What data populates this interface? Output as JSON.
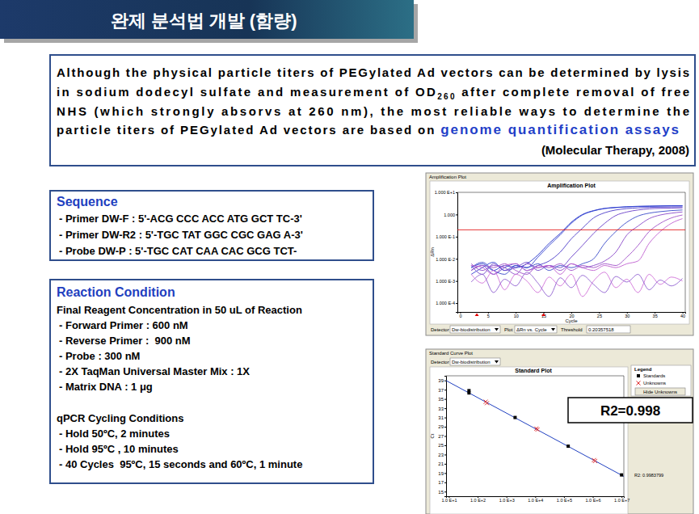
{
  "header": {
    "title": "완제 분석법 개발 (함량)"
  },
  "quote": {
    "lines": [
      [
        "Although the physical particle titers of PEGylated Ad vectors can be determined by lysis"
      ],
      [
        "in sodium dodecyl sulfate and measurement of OD",
        {
          "sub": "260"
        },
        " after complete removal of free"
      ],
      [
        "NHS (which strongly absorvs at 260 nm), the most reliable ways to determine the"
      ],
      [
        "particle titers of PEGylated Ad vectors are based on ",
        {
          "highlight": "genome quantification assays"
        }
      ]
    ],
    "citation": "(Molecular Therapy, 2008)"
  },
  "sequence": {
    "title": "Sequence",
    "lines": [
      "- Primer DW-F : 5'-ACG CCC ACC ATG GCT TC-3'",
      "- Primer DW-R2 : 5'-TGC TAT GGC CGC GAG A-3'",
      "- Probe DW-P : 5'-TGC CAT CAA CAC GCG TCT-"
    ]
  },
  "reaction": {
    "title": "Reaction Condition",
    "subtitle": "Final Reagent Concentration in 50 uL of Reaction",
    "items": [
      "- Forward Primer : 600 nM",
      "- Reverse Primer :  900 nM",
      "- Probe : 300 nM",
      "- 2X TaqMan Universal Master Mix : 1X",
      "- Matrix DNA : 1 μg"
    ],
    "cycling_title": "qPCR Cycling Conditions",
    "cycling": [
      "- Hold 50ºC, 2 minutes",
      "- Hold 95ºC , 10 minutes",
      "- 40 Cycles  95ºC, 15 seconds and 60ºC, 1 minute"
    ]
  },
  "chart_data": [
    {
      "type": "line",
      "window_title": "Amplification Plot",
      "title": "Amplification Plot",
      "xlabel": "Cycle",
      "ylabel": "ΔRn",
      "log": "y",
      "xlim": [
        -0.5,
        40.5
      ],
      "xticks": [
        0,
        5,
        10,
        15,
        20,
        25,
        30,
        35,
        40
      ],
      "ylim": [
        4e-05,
        10
      ],
      "yticks": [
        {
          "value": 10,
          "label": "1.000 E+1"
        },
        {
          "value": 1,
          "label": "1.000"
        },
        {
          "value": 0.1,
          "label": "1.000 E-1"
        },
        {
          "value": 0.01,
          "label": "1.000 E-2"
        },
        {
          "value": 0.001,
          "label": "1.000 E-3"
        },
        {
          "value": 0.0001,
          "label": "1.000 E-4"
        }
      ],
      "threshold": 0.20357518,
      "baseline_cycles": [
        3,
        15
      ],
      "detector_label": "Detector",
      "detector": "Dw-biodistribution",
      "plot_label": "Plot",
      "plot": "ΔRn vs. Cycle",
      "threshold_label": "Threshold",
      "x": [
        2,
        4,
        6,
        8,
        10,
        12,
        14,
        16,
        18,
        20,
        22,
        24,
        26,
        28,
        30,
        32,
        34,
        36,
        38,
        40
      ],
      "series": [
        {
          "color": "#1f2fc8",
          "values": [
            0.004,
            0.006,
            0.003,
            0.005,
            0.004,
            0.006,
            0.015,
            0.05,
            0.14,
            0.45,
            1.0,
            1.5,
            1.9,
            2.1,
            2.25,
            2.35,
            2.4,
            2.45,
            2.5,
            2.5
          ]
        },
        {
          "color": "#3040d0",
          "values": [
            0.002,
            0.004,
            0.007,
            0.003,
            0.005,
            0.004,
            0.012,
            0.04,
            0.12,
            0.4,
            0.95,
            1.45,
            1.85,
            2.05,
            2.2,
            2.3,
            2.35,
            2.4,
            2.45,
            2.45
          ]
        },
        {
          "color": "#4a3ac8",
          "values": [
            0.003,
            0.005,
            0.002,
            0.004,
            0.006,
            0.003,
            0.005,
            0.008,
            0.02,
            0.08,
            0.24,
            0.7,
            1.2,
            1.6,
            1.85,
            2.0,
            2.1,
            2.15,
            2.2,
            2.2
          ]
        },
        {
          "color": "#6a40c8",
          "values": [
            0.005,
            0.002,
            0.006,
            0.003,
            0.004,
            0.007,
            0.003,
            0.005,
            0.004,
            0.012,
            0.04,
            0.14,
            0.4,
            0.9,
            1.3,
            1.6,
            1.8,
            1.9,
            1.95,
            2.0
          ]
        },
        {
          "color": "#3848c8",
          "values": [
            0.004,
            0.007,
            0.003,
            0.002,
            0.005,
            0.004,
            0.006,
            0.003,
            0.005,
            0.004,
            0.006,
            0.01,
            0.05,
            0.17,
            0.45,
            0.85,
            1.15,
            1.35,
            1.5,
            1.6
          ]
        },
        {
          "color": "#8a48c8",
          "values": [
            0.006,
            0.003,
            0.005,
            0.004,
            0.002,
            0.006,
            0.004,
            0.005,
            0.003,
            0.006,
            0.004,
            0.005,
            0.008,
            0.02,
            0.12,
            0.3,
            0.65,
            0.95,
            1.15,
            1.3
          ]
        },
        {
          "color": "#a050c8",
          "values": [
            0.003,
            0.005,
            0.004,
            0.006,
            0.003,
            0.002,
            0.005,
            0.004,
            0.006,
            0.003,
            0.005,
            0.004,
            0.006,
            0.005,
            0.012,
            0.04,
            0.17,
            0.4,
            0.7,
            0.95
          ]
        },
        {
          "color": "#c060d0",
          "values": [
            0.005,
            0.004,
            0.002,
            0.005,
            0.006,
            0.003,
            0.004,
            0.005,
            0.002,
            0.006,
            0.004,
            0.003,
            0.005,
            0.004,
            0.006,
            0.008,
            0.05,
            0.17,
            0.4,
            0.65
          ]
        },
        {
          "color": "#d070d8",
          "values": [
            0.002,
            0.0008,
            0.003,
            0.0004,
            0.002,
            0.001,
            0.0003,
            0.0015,
            0.0006,
            0.002,
            0.0002,
            0.001,
            0.0025,
            0.0005,
            0.0012,
            0.0003,
            0.002,
            0.0007,
            0.0015,
            0.001
          ]
        },
        {
          "color": "#9060d0",
          "values": [
            0.0009,
            0.002,
            0.0003,
            0.0012,
            0.0006,
            0.0025,
            0.0008,
            0.0002,
            0.0014,
            0.0005,
            0.0018,
            0.0007,
            0.0003,
            0.0016,
            0.0009,
            0.002,
            0.0004,
            0.0011,
            0.0006,
            0.0013
          ]
        }
      ]
    },
    {
      "type": "scatter",
      "window_title": "Standard Curve Plot",
      "title": "Standard Plot",
      "ylabel": "Ct",
      "log": "x",
      "detector_label": "Detector",
      "detector": "Dw-biodistribution",
      "xlim": [
        8,
        12000000
      ],
      "xticks": [
        {
          "value": 10,
          "label": "1.0 E+1"
        },
        {
          "value": 100,
          "label": "1.0 E+2"
        },
        {
          "value": 1000,
          "label": "1.0 E+3"
        },
        {
          "value": 10000,
          "label": "1.0 E+4"
        },
        {
          "value": 100000,
          "label": "1.0 E+5"
        },
        {
          "value": 1000000,
          "label": "1.0 E+6"
        },
        {
          "value": 10000000,
          "label": "1.0 E+7"
        }
      ],
      "ylim": [
        14,
        40
      ],
      "yticks": [
        15,
        17,
        19,
        21,
        23,
        25,
        27,
        29,
        31,
        33,
        35,
        37,
        39
      ],
      "legend": "right",
      "legend_title": "Legend",
      "button": "Hide Unknowns",
      "r2_text": "R2: 0.9983799",
      "annotation": "R2=0.998",
      "series": [
        {
          "name": "Standards",
          "color": "#000000",
          "marker": "square",
          "x": [
            50,
            50,
            2000,
            140000,
            10000000
          ],
          "values": [
            36.3,
            36.8,
            31.0,
            24.8,
            18.6
          ]
        },
        {
          "name": "Unknowns",
          "color": "#e03030",
          "marker": "x",
          "x": [
            190,
            210,
            11000,
            12000,
            1100000,
            1200000
          ],
          "values": [
            34.4,
            34.1,
            28.6,
            28.4,
            21.8,
            21.6
          ]
        },
        {
          "type": "line",
          "color": "#2040c0",
          "x": [
            8,
            12000000
          ],
          "values": [
            38.97,
            18.28
          ]
        }
      ]
    }
  ]
}
